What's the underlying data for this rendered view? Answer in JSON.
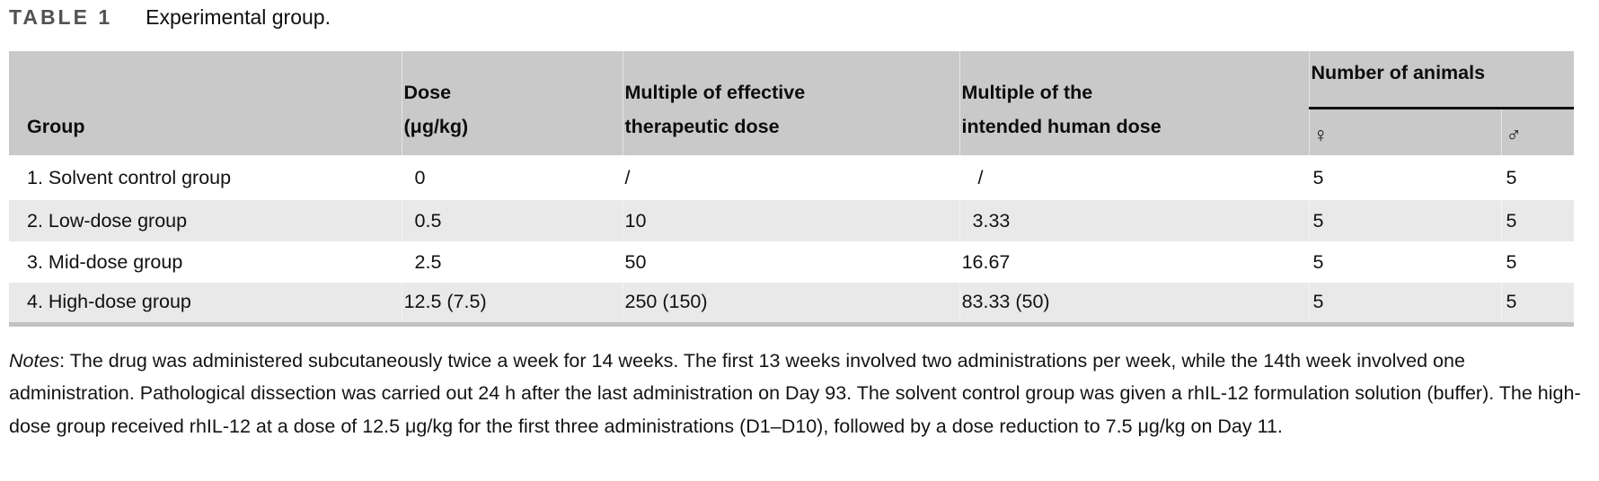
{
  "header": {
    "table_label": "TABLE 1",
    "caption": "Experimental group."
  },
  "table": {
    "col_group": {
      "label": "Group"
    },
    "col_dose": {
      "line1": "Dose",
      "line2": "(μg/kg)"
    },
    "col_eff": {
      "line1": "Multiple of effective",
      "line2": "therapeutic dose"
    },
    "col_human": {
      "line1": "Multiple of the",
      "line2": "intended human dose"
    },
    "col_animals": {
      "label": "Number of animals",
      "female_symbol": "♀",
      "male_symbol": "♂"
    },
    "rows": [
      {
        "group": "1. Solvent control group",
        "dose": "0",
        "eff": "/",
        "human": "/",
        "female": "5",
        "male": "5"
      },
      {
        "group": "2. Low-dose group",
        "dose": "0.5",
        "eff": "10",
        "human": "3.33",
        "female": "5",
        "male": "5"
      },
      {
        "group": "3. Mid-dose group",
        "dose": "2.5",
        "eff": "50",
        "human": "16.67",
        "female": "5",
        "male": "5"
      },
      {
        "group": "4. High-dose group",
        "dose": "12.5 (7.5)",
        "eff": "250 (150)",
        "human": "83.33 (50)",
        "female": "5",
        "male": "5"
      }
    ]
  },
  "notes": {
    "label": "Notes",
    "text": ": The drug was administered subcutaneously twice a week for 14 weeks. The first 13 weeks involved two administrations per week, while the 14th week involved one administration. Pathological dissection was carried out 24 h after the last administration on Day 93. The solvent control group was given a rhIL-12 formulation solution (buffer). The high-dose group received rhIL-12 at a dose of 12.5 μg/kg for the first three administrations (D1–D10), followed by a dose reduction to 7.5 μg/kg on Day 11."
  }
}
